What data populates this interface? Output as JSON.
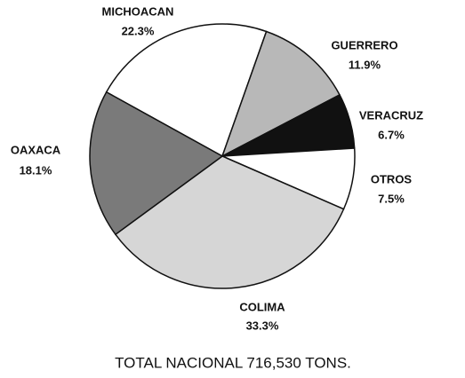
{
  "chart_data": {
    "type": "pie",
    "title": "TOTAL NACIONAL 716,530 TONS.",
    "categories": [
      "MICHOACAN",
      "GUERRERO",
      "VERACRUZ",
      "OTROS",
      "COLIMA",
      "OAXACA"
    ],
    "values": [
      22.3,
      11.9,
      6.7,
      7.5,
      33.3,
      18.1
    ],
    "value_labels": [
      "22.3%",
      "11.9%",
      "6.7%",
      "7.5%",
      "33.3%",
      "18.1%"
    ],
    "colors": [
      "#ffffff",
      "#b8b8b8",
      "#111111",
      "#ffffff",
      "#d6d6d6",
      "#7a7a7a"
    ]
  }
}
